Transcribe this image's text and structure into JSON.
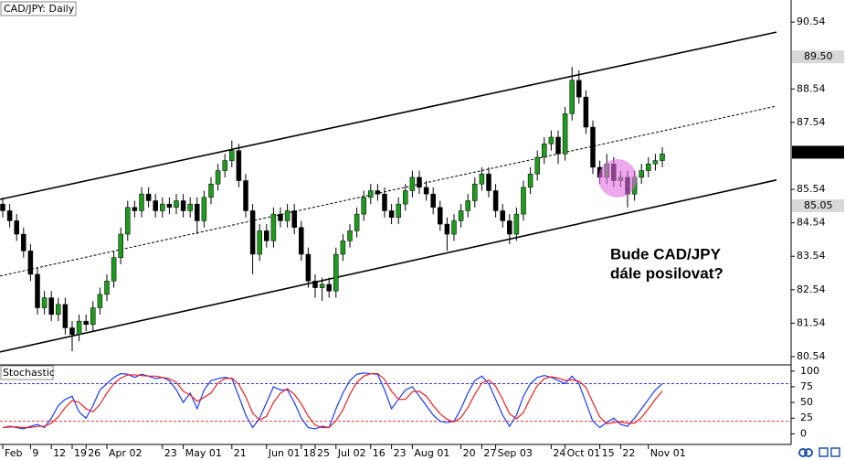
{
  "chart_data": [
    {
      "type": "candlestick",
      "title": "CAD/JPY: Daily",
      "categories": [
        "Feb",
        null,
        null,
        null,
        "9",
        null,
        null,
        "12",
        null,
        null,
        "19",
        null,
        "26",
        null,
        null,
        "Apr 02",
        null,
        null,
        null,
        null,
        null,
        null,
        null,
        "23",
        null,
        null,
        "May 01",
        null,
        null,
        null,
        null,
        null,
        null,
        "21",
        null,
        null,
        null,
        null,
        "Jun 01",
        null,
        null,
        null,
        null,
        "18",
        null,
        "25",
        null,
        null,
        "Jul 02",
        null,
        null,
        null,
        null,
        "16",
        null,
        null,
        "23",
        null,
        null,
        "Aug 01",
        null,
        null,
        null,
        null,
        null,
        null,
        "20",
        null,
        null,
        "27",
        null,
        "Sep 03",
        null,
        null,
        null,
        null,
        null,
        null,
        null,
        "24",
        null,
        "Oct 01",
        null,
        null,
        null,
        null,
        "15",
        null,
        null,
        "22",
        null,
        null,
        null,
        "Nov 01",
        null,
        null
      ],
      "open": [
        85.1,
        84.9,
        84.6,
        84.2,
        83.7,
        83.0,
        82.0,
        82.3,
        81.8,
        82.1,
        81.4,
        81.2,
        81.6,
        81.5,
        82.0,
        82.4,
        82.8,
        83.5,
        84.2,
        85.0,
        84.9,
        85.4,
        85.2,
        84.9,
        85.1,
        85.0,
        85.2,
        84.9,
        85.1,
        84.6,
        85.3,
        85.7,
        86.1,
        86.4,
        86.7,
        85.8,
        84.9,
        83.6,
        84.3,
        84.0,
        84.8,
        84.6,
        84.9,
        84.4,
        83.6,
        82.8,
        82.6,
        82.7,
        82.5,
        83.6,
        84.0,
        84.3,
        84.8,
        85.3,
        85.5,
        85.4,
        84.9,
        84.7,
        85.1,
        85.5,
        85.9,
        85.6,
        85.4,
        85.0,
        84.5,
        84.2,
        84.6,
        84.9,
        85.2,
        85.7,
        86.0,
        85.5,
        84.9,
        84.6,
        84.2,
        84.8,
        85.6,
        86.0,
        86.5,
        86.9,
        87.1,
        86.6,
        87.8,
        88.8,
        88.3,
        87.4,
        86.2,
        85.9,
        86.3,
        85.8,
        85.9,
        85.4,
        85.9,
        86.1,
        86.3,
        86.4
      ],
      "high": [
        85.3,
        85.1,
        84.8,
        84.4,
        83.9,
        83.2,
        82.5,
        82.5,
        82.3,
        82.3,
        81.6,
        81.8,
        81.8,
        82.2,
        82.6,
        83.0,
        83.7,
        84.4,
        85.2,
        85.2,
        85.6,
        85.6,
        85.4,
        85.3,
        85.3,
        85.4,
        85.4,
        85.3,
        85.3,
        85.5,
        85.9,
        86.3,
        86.6,
        87.0,
        86.9,
        86.0,
        85.1,
        84.5,
        84.5,
        85.0,
        85.0,
        85.1,
        85.1,
        84.6,
        83.8,
        83.0,
        82.9,
        82.9,
        83.8,
        84.2,
        84.5,
        85.0,
        85.5,
        85.7,
        85.7,
        85.6,
        85.1,
        85.3,
        85.7,
        86.1,
        86.1,
        85.8,
        85.6,
        85.2,
        84.7,
        84.8,
        85.1,
        85.4,
        85.9,
        86.2,
        86.2,
        85.7,
        85.1,
        84.8,
        85.0,
        85.8,
        86.2,
        86.7,
        87.1,
        87.3,
        87.3,
        88.0,
        89.2,
        89.1,
        88.5,
        87.6,
        86.4,
        86.6,
        86.5,
        86.1,
        86.1,
        86.1,
        86.3,
        86.5,
        86.6,
        86.8
      ],
      "low": [
        84.7,
        84.4,
        84.0,
        83.5,
        82.8,
        81.8,
        81.8,
        81.6,
        81.6,
        81.2,
        80.7,
        81.0,
        81.3,
        81.3,
        81.8,
        82.2,
        82.6,
        83.3,
        84.0,
        84.7,
        84.7,
        85.0,
        84.7,
        84.7,
        84.8,
        84.8,
        84.7,
        84.7,
        84.2,
        84.4,
        85.1,
        85.5,
        85.9,
        86.2,
        85.6,
        84.7,
        83.0,
        83.4,
        83.8,
        83.8,
        84.4,
        84.4,
        84.2,
        83.4,
        82.6,
        82.3,
        82.2,
        82.3,
        82.3,
        83.4,
        83.8,
        84.1,
        84.6,
        85.1,
        85.2,
        84.7,
        84.5,
        84.5,
        84.9,
        85.3,
        85.4,
        85.2,
        84.8,
        84.3,
        83.7,
        84.0,
        84.4,
        84.7,
        85.0,
        85.5,
        85.3,
        84.7,
        84.4,
        83.9,
        84.0,
        84.6,
        85.4,
        85.8,
        86.3,
        86.7,
        86.3,
        86.4,
        87.6,
        88.1,
        87.2,
        86.0,
        85.7,
        85.7,
        85.6,
        85.6,
        85.0,
        85.2,
        85.7,
        85.9,
        86.1,
        86.2
      ],
      "close": [
        84.9,
        84.6,
        84.2,
        83.7,
        83.0,
        82.0,
        82.3,
        81.8,
        82.1,
        81.4,
        81.2,
        81.6,
        81.5,
        82.0,
        82.4,
        82.8,
        83.5,
        84.2,
        85.0,
        84.9,
        85.4,
        85.2,
        84.9,
        85.1,
        85.0,
        85.2,
        84.9,
        85.1,
        84.6,
        85.3,
        85.7,
        86.1,
        86.4,
        86.7,
        85.8,
        84.9,
        83.6,
        84.3,
        84.0,
        84.8,
        84.6,
        84.9,
        84.4,
        83.6,
        82.8,
        82.6,
        82.7,
        82.5,
        83.6,
        84.0,
        84.3,
        84.8,
        85.3,
        85.5,
        85.4,
        84.9,
        84.7,
        85.1,
        85.5,
        85.9,
        85.6,
        85.4,
        85.0,
        84.5,
        84.2,
        84.6,
        84.9,
        85.2,
        85.7,
        86.0,
        85.5,
        84.9,
        84.6,
        84.2,
        84.8,
        85.6,
        86.0,
        86.5,
        86.9,
        87.1,
        86.6,
        87.8,
        88.8,
        88.3,
        87.4,
        86.2,
        85.9,
        86.3,
        85.8,
        85.9,
        85.4,
        85.9,
        86.1,
        86.3,
        86.4,
        86.6
      ],
      "up_color": "#1f9a1f",
      "down_color": "#000000",
      "ylim": [
        80.32,
        91.2
      ],
      "yticks": [
        90.54,
        88.54,
        87.54,
        85.54,
        84.54,
        83.54,
        82.54,
        81.54,
        80.54
      ],
      "price_markers": [
        {
          "value": 89.5,
          "label": "89.50",
          "color": "#d8d8d8"
        },
        {
          "value": 86.65,
          "label": "86.65",
          "color": "#000000"
        },
        {
          "value": 85.05,
          "label": "85.05",
          "color": "#d8d8d8"
        }
      ],
      "trendlines": [
        {
          "values": [
            85.24,
            90.24
          ],
          "style": "solid"
        },
        {
          "values": [
            82.95,
            88.03
          ],
          "style": "dashed"
        },
        {
          "values": [
            80.68,
            85.82
          ],
          "style": "solid"
        }
      ],
      "annotation": [
        "Bude CAD/JPY",
        "dále posilovat?"
      ]
    },
    {
      "type": "line",
      "title": "Stochastic",
      "ylim": [
        -14,
        107
      ],
      "yticks": [
        100,
        75,
        50,
        25,
        0
      ],
      "levels": [
        {
          "value": 80,
          "color": "#3a3adf"
        },
        {
          "value": 20,
          "color": "#df3a3a"
        }
      ],
      "series": [
        {
          "color": "#1a3cff",
          "values": [
            10,
            12,
            10,
            8,
            12,
            15,
            10,
            25,
            45,
            55,
            60,
            35,
            25,
            45,
            70,
            80,
            90,
            96,
            95,
            90,
            95,
            92,
            88,
            90,
            85,
            70,
            50,
            65,
            40,
            70,
            85,
            88,
            90,
            88,
            60,
            30,
            10,
            25,
            50,
            75,
            70,
            70,
            50,
            25,
            10,
            8,
            12,
            10,
            40,
            65,
            85,
            95,
            97,
            96,
            95,
            70,
            40,
            55,
            70,
            75,
            60,
            45,
            30,
            20,
            18,
            20,
            40,
            65,
            85,
            92,
            80,
            55,
            30,
            12,
            30,
            60,
            80,
            90,
            93,
            90,
            85,
            80,
            92,
            80,
            50,
            20,
            10,
            18,
            25,
            15,
            12,
            25,
            40,
            55,
            70,
            80
          ]
        },
        {
          "color": "#ee2020",
          "values": [
            10,
            11,
            11,
            10,
            10,
            12,
            12,
            17,
            27,
            42,
            53,
            50,
            40,
            35,
            47,
            65,
            80,
            89,
            94,
            94,
            93,
            92,
            92,
            90,
            88,
            82,
            68,
            62,
            52,
            58,
            65,
            81,
            88,
            89,
            79,
            59,
            33,
            22,
            28,
            50,
            65,
            72,
            63,
            48,
            28,
            14,
            10,
            10,
            21,
            38,
            63,
            82,
            92,
            96,
            96,
            87,
            68,
            55,
            55,
            67,
            68,
            60,
            45,
            32,
            23,
            19,
            26,
            42,
            63,
            81,
            86,
            76,
            55,
            32,
            24,
            34,
            57,
            77,
            88,
            91,
            89,
            85,
            86,
            84,
            74,
            50,
            27,
            16,
            18,
            19,
            17,
            17,
            26,
            40,
            55,
            68
          ]
        }
      ]
    }
  ]
}
